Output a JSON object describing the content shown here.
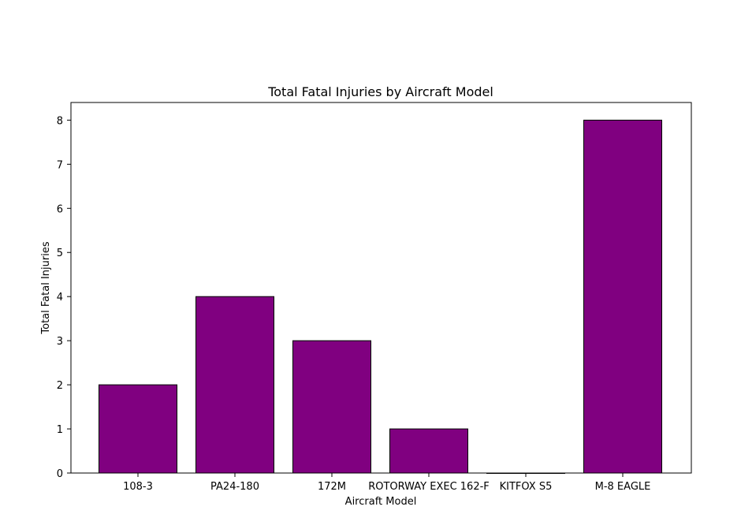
{
  "chart_data": {
    "type": "bar",
    "title": "Total Fatal Injuries by Aircraft Model",
    "xlabel": "Aircraft Model",
    "ylabel": "Total Fatal Injuries",
    "categories": [
      "108-3",
      "PA24-180",
      "172M",
      "ROTORWAY EXEC 162-F",
      "KITFOX S5",
      "M-8 EAGLE"
    ],
    "values": [
      2,
      4,
      3,
      1,
      0,
      8
    ],
    "ylim": [
      0,
      8.4
    ],
    "yticks": [
      0,
      1,
      2,
      3,
      4,
      5,
      6,
      7,
      8
    ],
    "grid": false,
    "bar_color": "#800080",
    "edge_color": "#000000"
  }
}
